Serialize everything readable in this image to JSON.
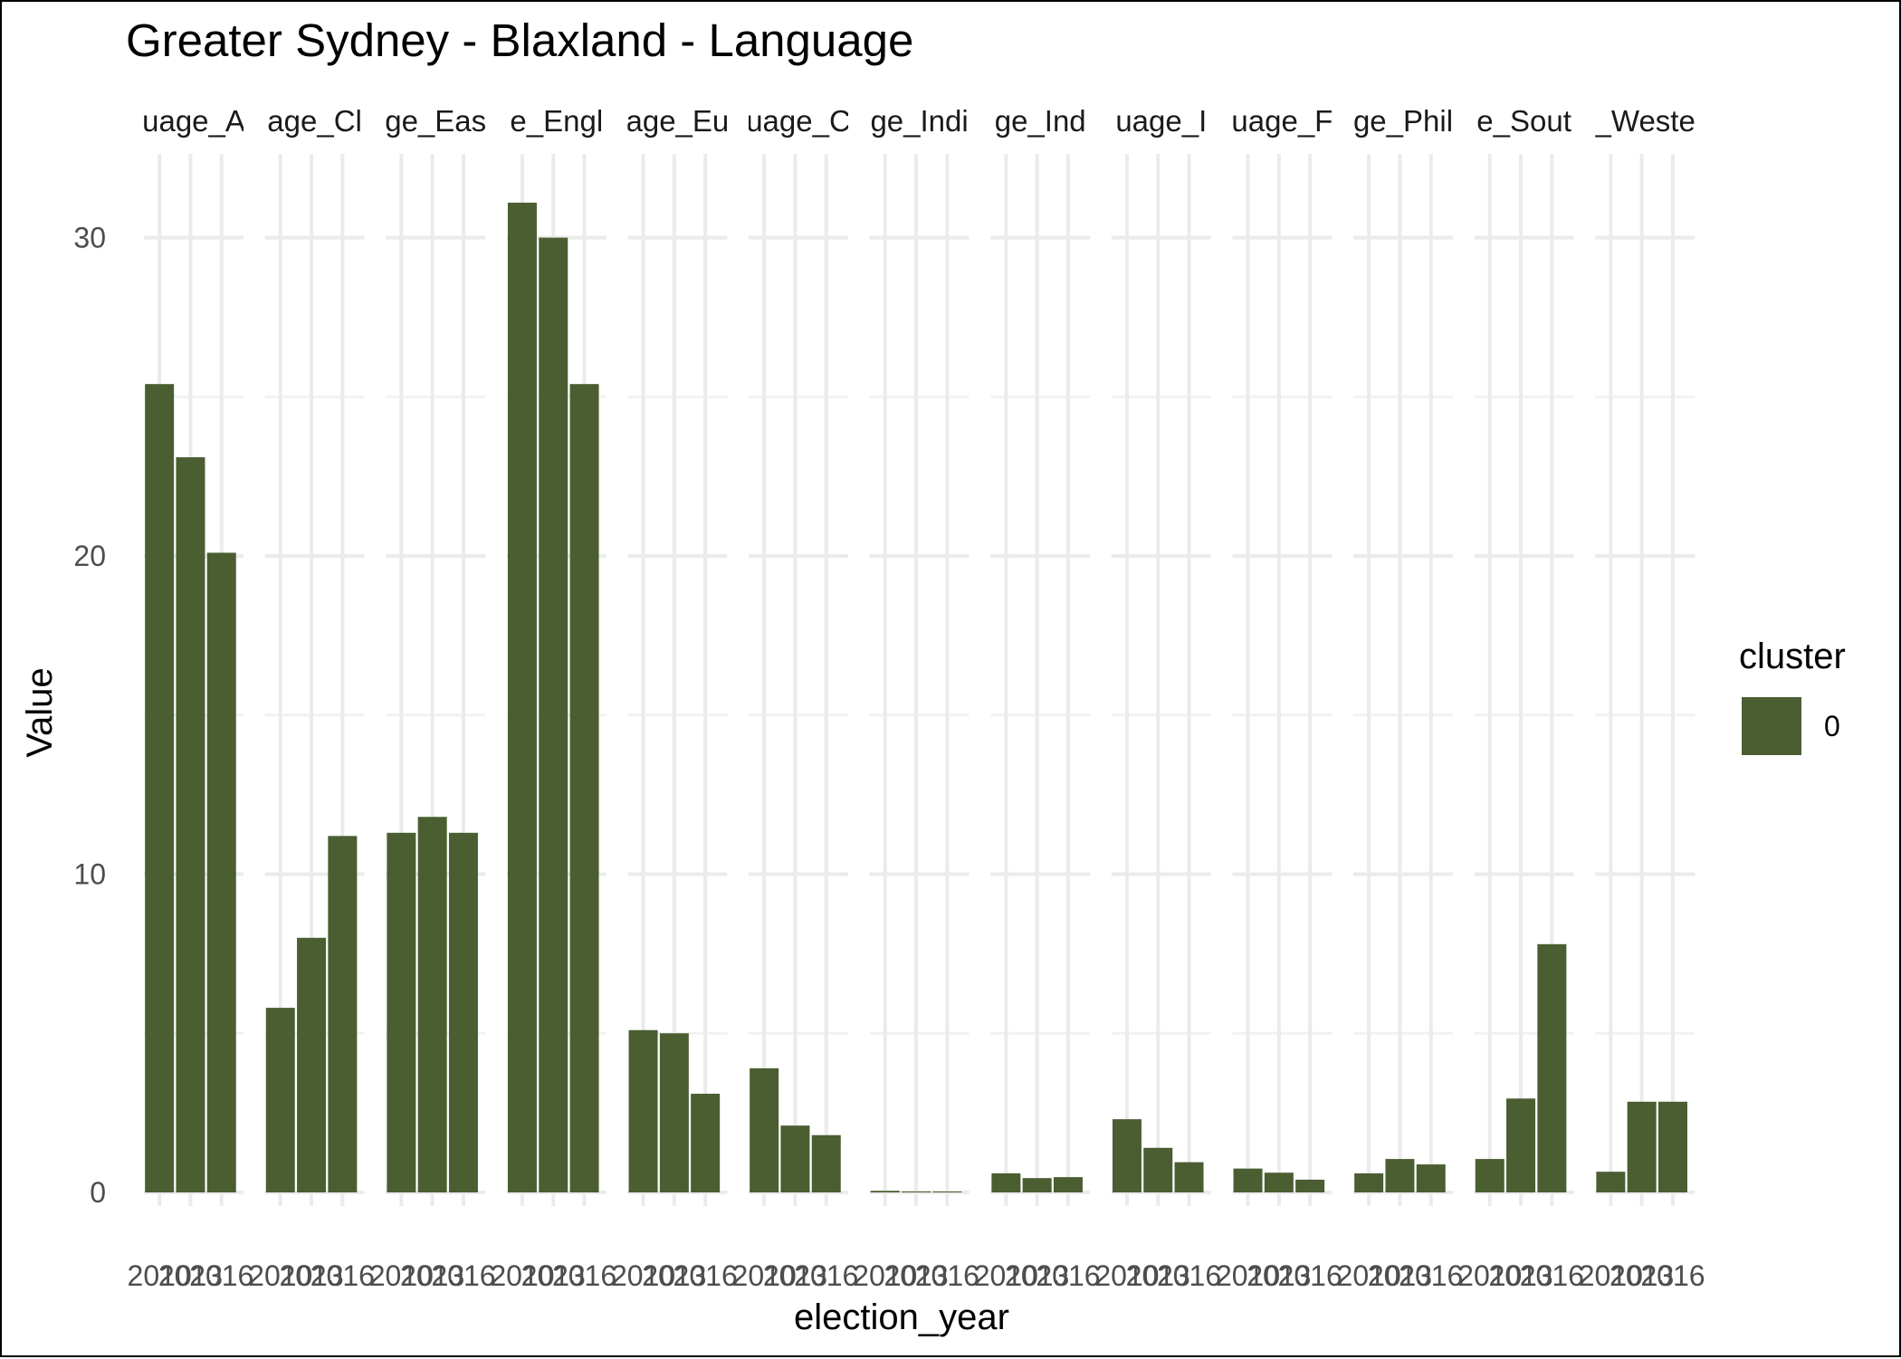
{
  "chart_data": {
    "type": "bar",
    "title": "Greater Sydney - Blaxland - Language",
    "xlabel": "election_year",
    "ylabel": "Value",
    "ylim": [
      0,
      32
    ],
    "yticks": [
      0,
      10,
      20,
      30
    ],
    "grid": true,
    "legend": {
      "title": "cluster",
      "position": "right",
      "entries": [
        {
          "label": "0",
          "color": "#4a5e32"
        }
      ]
    },
    "x_categories": [
      "2010",
      "2013",
      "2016"
    ],
    "x_tick_labels": [
      "2010",
      "2013",
      "2016"
    ],
    "bar_color": "#4a5e32",
    "facets": [
      {
        "strip_label": "uage_A",
        "values": [
          25.4,
          23.1,
          20.1
        ]
      },
      {
        "strip_label": "age_Cl",
        "values": [
          5.8,
          8.0,
          11.2
        ]
      },
      {
        "strip_label": "ge_Eas",
        "values": [
          11.3,
          11.8,
          11.3
        ]
      },
      {
        "strip_label": "e_Engl",
        "values": [
          31.1,
          30.0,
          25.4
        ]
      },
      {
        "strip_label": "age_Eu",
        "values": [
          5.1,
          5.0,
          3.1
        ]
      },
      {
        "strip_label": "uage_C",
        "values": [
          3.9,
          2.1,
          1.8
        ]
      },
      {
        "strip_label": "ge_Indi",
        "values": [
          0.05,
          0.03,
          0.02
        ]
      },
      {
        "strip_label": "ge_Ind",
        "values": [
          0.6,
          0.45,
          0.48
        ]
      },
      {
        "strip_label": "uage_I",
        "values": [
          2.3,
          1.4,
          0.95
        ]
      },
      {
        "strip_label": "uage_F",
        "values": [
          0.75,
          0.62,
          0.4
        ]
      },
      {
        "strip_label": "ge_Phil",
        "values": [
          0.6,
          1.05,
          0.88
        ]
      },
      {
        "strip_label": "e_Sout",
        "values": [
          1.05,
          2.95,
          7.8
        ]
      },
      {
        "strip_label": "_Weste",
        "values": [
          0.65,
          2.85,
          2.85
        ]
      }
    ]
  }
}
